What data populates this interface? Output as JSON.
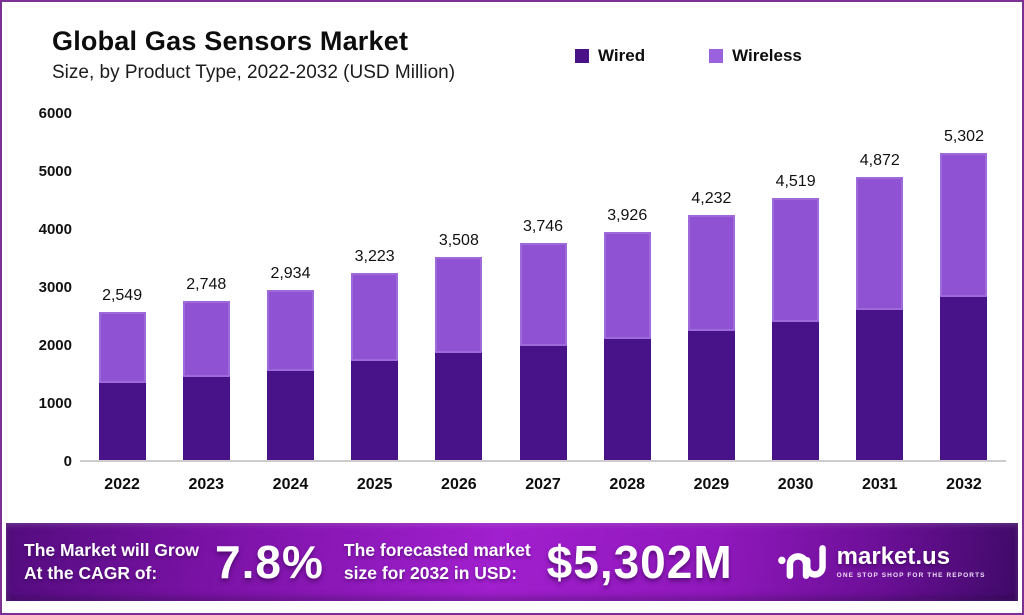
{
  "frame": {
    "border_color": "#7d3094",
    "background": "#ffffff"
  },
  "header": {
    "title": "Global Gas Sensors Market",
    "subtitle": "Size, by Product Type, 2022-2032 (USD Million)"
  },
  "legend": {
    "items": [
      {
        "label": "Wired",
        "color": "#4a1287"
      },
      {
        "label": "Wireless",
        "color": "#9a63dd"
      }
    ]
  },
  "chart_data": {
    "type": "bar",
    "stacked": true,
    "title": "Global Gas Sensors Market",
    "subtitle": "Size, by Product Type, 2022-2032 (USD Million)",
    "unit": "USD Million",
    "categories": [
      "2022",
      "2023",
      "2024",
      "2025",
      "2026",
      "2027",
      "2028",
      "2029",
      "2030",
      "2031",
      "2032"
    ],
    "series": [
      {
        "name": "Wired",
        "color": "#481289",
        "values": [
          1330,
          1430,
          1535,
          1705,
          1845,
          1965,
          2085,
          2230,
          2380,
          2585,
          2810
        ]
      },
      {
        "name": "Wireless",
        "color": "#8f52d3",
        "values": [
          1219,
          1318,
          1399,
          1518,
          1663,
          1781,
          1841,
          2002,
          2139,
          2287,
          2492
        ]
      }
    ],
    "totals": [
      2549,
      2748,
      2934,
      3223,
      3508,
      3746,
      3926,
      4232,
      4519,
      4872,
      5302
    ],
    "total_labels": [
      "2,549",
      "2,748",
      "2,934",
      "3,223",
      "3,508",
      "3,746",
      "3,926",
      "4,232",
      "4,519",
      "4,872",
      "5,302"
    ],
    "ylim": [
      0,
      6000
    ],
    "yticks": [
      6000,
      5000,
      4000,
      3000,
      2000,
      1000,
      0
    ],
    "ytick_labels": [
      "6000",
      "5000",
      "4000",
      "3000",
      "2000",
      "1000",
      "0"
    ],
    "grid": false,
    "legend_position": "top-right"
  },
  "banner": {
    "cagr_label_line1": "The Market will Grow",
    "cagr_label_line2": "At the CAGR of:",
    "cagr_value": "7.8%",
    "forecast_label_line1": "The forecasted market",
    "forecast_label_line2": "size for 2032 in USD:",
    "forecast_value": "$5,302M",
    "logo_text": "market.us",
    "logo_tagline": "ONE STOP SHOP FOR THE REPORTS"
  }
}
